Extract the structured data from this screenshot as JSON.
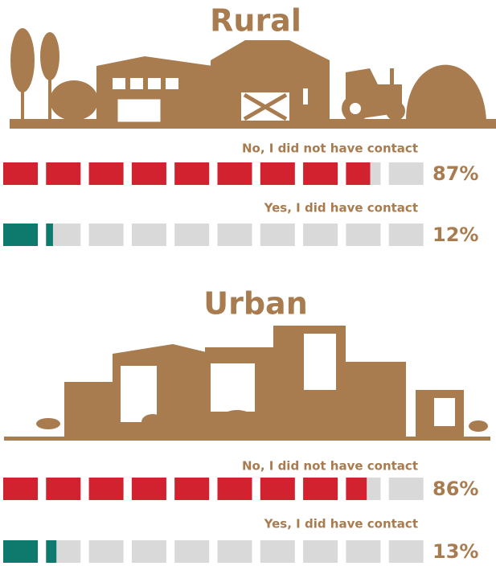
{
  "chart_data": [
    {
      "type": "pictogram",
      "title": "Rural",
      "xlim": [
        0,
        100
      ],
      "series": [
        {
          "name": "No, I did not have contact",
          "color": "#d3222f",
          "values": [
            87
          ],
          "value_labels": [
            "87%"
          ]
        },
        {
          "name": "Yes, I did have contact",
          "color": "#0e7a6d",
          "values": [
            12
          ],
          "value_labels": [
            "12%"
          ]
        }
      ]
    },
    {
      "type": "pictogram",
      "title": "Urban",
      "xlim": [
        0,
        100
      ],
      "series": [
        {
          "name": "No, I did not have contact",
          "color": "#d3222f",
          "values": [
            86
          ],
          "value_labels": [
            "86%"
          ]
        },
        {
          "name": "Yes, I did have contact",
          "color": "#0e7a6d",
          "values": [
            13
          ],
          "value_labels": [
            "13%"
          ]
        }
      ]
    }
  ]
}
